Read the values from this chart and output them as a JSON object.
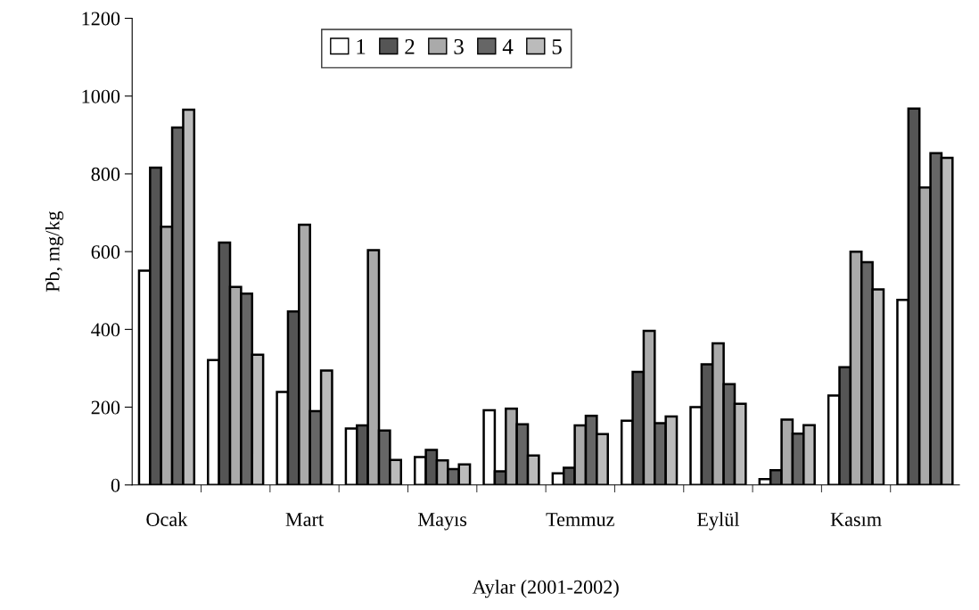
{
  "chart_data": {
    "type": "bar",
    "xlabel": "Aylar (2001-2002)",
    "ylabel": "Pb, mg/kg",
    "categories": [
      "Ocak",
      null,
      "Mart",
      null,
      "Mayıs",
      null,
      "Temmuz",
      null,
      "Eylül",
      null,
      "Kasım",
      null
    ],
    "series": [
      {
        "name": "1",
        "color": "#ffffff",
        "values": [
          551,
          321,
          239,
          145,
          72,
          192,
          30,
          165,
          200,
          15,
          230,
          476
        ]
      },
      {
        "name": "2",
        "color": "#555555",
        "values": [
          816,
          623,
          446,
          153,
          90,
          35,
          44,
          291,
          310,
          38,
          303,
          968
        ]
      },
      {
        "name": "3",
        "color": "#aaaaaa",
        "values": [
          664,
          509,
          669,
          604,
          63,
          196,
          153,
          396,
          364,
          168,
          600,
          765
        ]
      },
      {
        "name": "4",
        "color": "#666666",
        "values": [
          919,
          492,
          190,
          140,
          41,
          156,
          178,
          159,
          259,
          132,
          573,
          853
        ]
      },
      {
        "name": "5",
        "color": "#bbbbbb",
        "values": [
          965,
          335,
          294,
          64,
          53,
          76,
          131,
          176,
          209,
          154,
          503,
          841
        ]
      }
    ],
    "ylim": [
      0,
      1200
    ],
    "yticks": [
      0,
      200,
      400,
      600,
      800,
      1000,
      1200
    ],
    "grid": false,
    "legend": "top"
  }
}
